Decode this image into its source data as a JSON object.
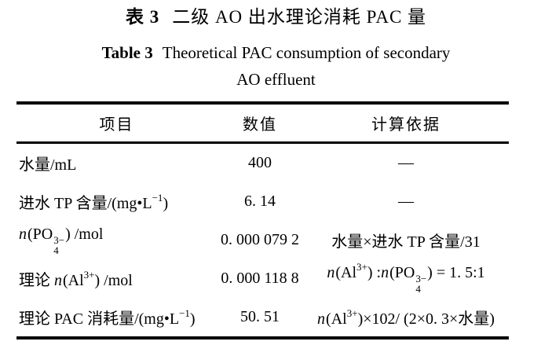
{
  "caption": {
    "zh_label": "表 3",
    "zh_title": "二级 AO 出水理论消耗 PAC 量",
    "en_label": "Table 3",
    "en_line1": "Theoretical PAC consumption of secondary",
    "en_line2": "AO effluent"
  },
  "table": {
    "headers": [
      "项目",
      "数值",
      "计算依据"
    ],
    "rows": [
      {
        "item": [
          {
            "t": "水量/mL"
          }
        ],
        "value": "400",
        "basis": [
          {
            "t": "—"
          }
        ]
      },
      {
        "item": [
          {
            "t": "进水 TP 含量/(mg•L"
          },
          {
            "sup": "−1"
          },
          {
            "t": ")"
          }
        ],
        "value": "6. 14",
        "basis": [
          {
            "t": "—"
          }
        ]
      },
      {
        "item": [
          {
            "t": "n",
            "i": true
          },
          {
            "t": "(PO"
          },
          {
            "stack": {
              "sup": "3−",
              "sub": "4"
            }
          },
          {
            "t": ") /mol"
          }
        ],
        "value": "0. 000 079 2",
        "basis": [
          {
            "t": "水量×进水 TP 含量/31"
          }
        ]
      },
      {
        "item": [
          {
            "t": "理论 "
          },
          {
            "t": "n",
            "i": true
          },
          {
            "t": "(Al"
          },
          {
            "sup": "3+"
          },
          {
            "t": ") /mol"
          }
        ],
        "value": "0. 000 118 8",
        "basis": [
          {
            "t": "n",
            "i": true
          },
          {
            "t": "(Al"
          },
          {
            "sup": "3+"
          },
          {
            "t": ") :"
          },
          {
            "t": "n",
            "i": true
          },
          {
            "t": "(PO"
          },
          {
            "stack": {
              "sup": "3−",
              "sub": "4"
            }
          },
          {
            "t": ") = 1. 5:1"
          }
        ]
      },
      {
        "item": [
          {
            "t": "理论 PAC 消耗量/(mg•L"
          },
          {
            "sup": "−1"
          },
          {
            "t": ")"
          }
        ],
        "value": "50. 51",
        "basis": [
          {
            "t": "n",
            "i": true
          },
          {
            "t": "(Al"
          },
          {
            "sup": "3+"
          },
          {
            "t": ")×102/ (2×0. 3×水量)"
          }
        ]
      }
    ]
  },
  "chart_data": {
    "type": "table",
    "title_zh": "表 3 二级 AO 出水理论消耗 PAC 量",
    "title_en": "Table 3 Theoretical PAC consumption of secondary AO effluent",
    "columns": [
      "项目",
      "数值",
      "计算依据"
    ],
    "rows": [
      [
        "水量/mL",
        "400",
        "—"
      ],
      [
        "进水 TP 含量/(mg•L⁻¹)",
        "6.14",
        "—"
      ],
      [
        "n(PO₄³⁻)/mol",
        "0.000 079 2",
        "水量×进水 TP 含量/31"
      ],
      [
        "理论 n(Al³⁺)/mol",
        "0.000 118 8",
        "n(Al³⁺):n(PO₄³⁻) = 1.5:1"
      ],
      [
        "理论 PAC 消耗量/(mg•L⁻¹)",
        "50.51",
        "n(Al³⁺)×102/(2×0.3×水量)"
      ]
    ]
  },
  "colors": {
    "background": "#ffffff",
    "text": "#000000",
    "rule": "#000000"
  }
}
